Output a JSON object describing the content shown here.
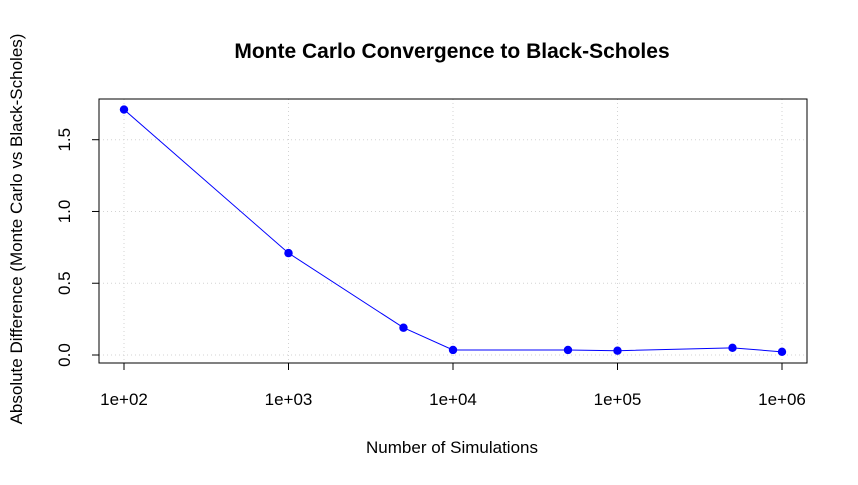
{
  "chart_data": {
    "type": "line",
    "title": "Monte Carlo Convergence to Black-Scholes",
    "xlabel": "Number of Simulations",
    "ylabel": "Absolute Difference (Monte Carlo vs Black-Scholes)",
    "x_scale": "log",
    "xlim": [
      100,
      1000000
    ],
    "ylim": [
      0,
      1.7
    ],
    "x_ticks": [
      100,
      1000,
      10000,
      100000,
      1000000
    ],
    "x_tick_labels": [
      "1e+02",
      "1e+03",
      "1e+04",
      "1e+05",
      "1e+06"
    ],
    "y_ticks": [
      0.0,
      0.5,
      1.0,
      1.5
    ],
    "y_tick_labels": [
      "0.0",
      "0.5",
      "1.0",
      "1.5"
    ],
    "grid": true,
    "series": [
      {
        "x": [
          100,
          1000,
          5000,
          10000,
          50000,
          100000,
          500000,
          1000000
        ],
        "y": [
          1.71,
          0.71,
          0.19,
          0.035,
          0.035,
          0.03,
          0.05,
          0.022
        ]
      }
    ],
    "colors": {
      "line": "#0000ff",
      "points": "#0000ff",
      "grid": "#d3d3d3"
    }
  }
}
